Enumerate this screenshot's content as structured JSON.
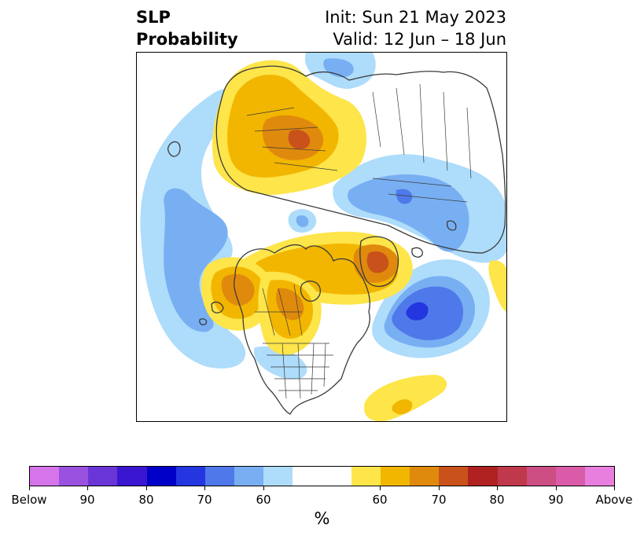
{
  "title": {
    "left_line1": "SLP",
    "left_line2": "Probability",
    "right_line1": "Init: Sun 21 May 2023",
    "right_line2": "Valid: 12 Jun – 18 Jun"
  },
  "map": {
    "projection": "north-polar-stereographic",
    "field": "sea level pressure tercile probability",
    "coastline_color": "#3a3a3a",
    "below_regions": [
      {
        "name": "north-pacific-gulf-of-alaska",
        "peak_percent": 60
      },
      {
        "name": "eastern-siberia-arctic",
        "peak_percent": 65
      },
      {
        "name": "barents-kara-sea",
        "peak_percent": 60
      },
      {
        "name": "north-atlantic",
        "peak_percent": 75
      },
      {
        "name": "north-central-pacific-west",
        "peak_percent": 60
      }
    ],
    "above_regions": [
      {
        "name": "alaska-bering",
        "peak_percent": 75
      },
      {
        "name": "western-canada-northwest-us",
        "peak_percent": 70
      },
      {
        "name": "hudson-bay-greenland-arctic",
        "peak_percent": 75
      },
      {
        "name": "siberia-east-asia",
        "peak_percent": 70
      },
      {
        "name": "subtropical-atlantic",
        "peak_percent": 60
      },
      {
        "name": "northwest-africa",
        "peak_percent": 60
      }
    ]
  },
  "colorbar": {
    "colors": [
      "#d674ea",
      "#9b51e0",
      "#6a35d6",
      "#3a16d0",
      "#0000c8",
      "#2336e0",
      "#4f79ea",
      "#78aff2",
      "#aedcfb",
      "#ffffff",
      "#ffffff",
      "#fde54a",
      "#f2b600",
      "#e08a0d",
      "#c9521b",
      "#b02222",
      "#c0384b",
      "#cc4e82",
      "#da5ca8",
      "#e87fde"
    ],
    "tick_labels": [
      "Below",
      "90",
      "80",
      "70",
      "60",
      "60",
      "70",
      "80",
      "90",
      "Above"
    ],
    "units_label": "%"
  },
  "colors": {
    "below_60": "#aedcfb",
    "below_65": "#78aff2",
    "below_70": "#4f79ea",
    "below_75": "#2336e0",
    "above_60": "#fde54a",
    "above_65": "#f2b600",
    "above_70": "#e08a0d",
    "above_75": "#c9521b"
  }
}
